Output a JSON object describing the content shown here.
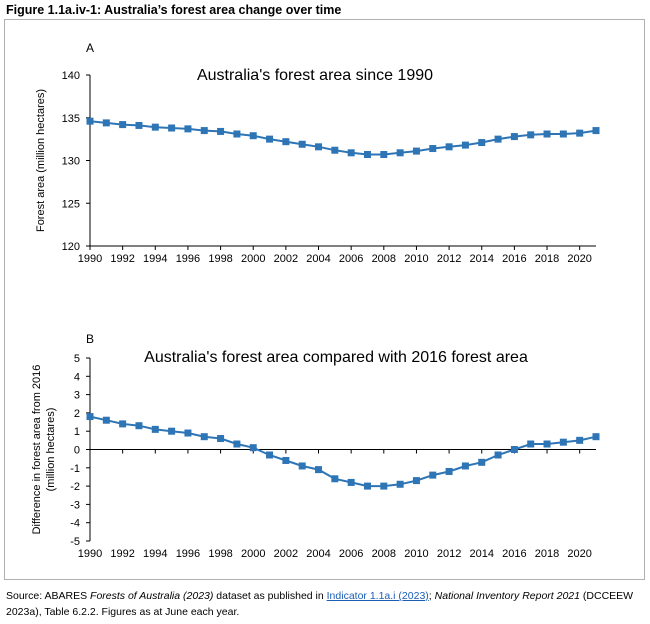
{
  "figure_title": "Figure 1.1a.iv-1: Australia’s forest area change over time",
  "source": {
    "prefix": "Source: ABARES ",
    "italic1": "Forests of Australia (2023)",
    "mid1": " dataset as published in ",
    "link": "Indicator 1.1a.i (2023)",
    "mid2": "; ",
    "italic2": "National Inventory Report 2021",
    "suffix": " (DCCEEW 2023a), Table 6.2.2. Figures as at June each year."
  },
  "colors": {
    "series": "#2e75b6",
    "axis": "#000000"
  },
  "chart_data": [
    {
      "panel": "A",
      "type": "line",
      "title": "Australia's forest area since 1990",
      "xlabel": "",
      "ylabel": "Forest area (million hectares)",
      "xlim": [
        1990,
        2021
      ],
      "ylim": [
        120,
        140
      ],
      "xticks": [
        "1990",
        "1992",
        "1994",
        "1996",
        "1998",
        "2000",
        "2002",
        "2004",
        "2006",
        "2008",
        "2010",
        "2012",
        "2014",
        "2016",
        "2018",
        "2020"
      ],
      "yticks": [
        "120",
        "125",
        "130",
        "135",
        "140"
      ],
      "x": [
        1990,
        1991,
        1992,
        1993,
        1994,
        1995,
        1996,
        1997,
        1998,
        1999,
        2000,
        2001,
        2002,
        2003,
        2004,
        2005,
        2006,
        2007,
        2008,
        2009,
        2010,
        2011,
        2012,
        2013,
        2014,
        2015,
        2016,
        2017,
        2018,
        2019,
        2020,
        2021
      ],
      "values": [
        134.6,
        134.4,
        134.2,
        134.1,
        133.9,
        133.8,
        133.7,
        133.5,
        133.4,
        133.1,
        132.9,
        132.5,
        132.2,
        131.9,
        131.6,
        131.2,
        130.9,
        130.7,
        130.7,
        130.9,
        131.1,
        131.4,
        131.6,
        131.8,
        132.1,
        132.5,
        132.8,
        133.0,
        133.1,
        133.1,
        133.2,
        133.5
      ]
    },
    {
      "panel": "B",
      "type": "line",
      "title": "Australia's forest area compared with 2016 forest area",
      "xlabel": "",
      "ylabel": "Difference in forest area from 2016 (million hectares)",
      "xlim": [
        1990,
        2021
      ],
      "ylim": [
        -5,
        5
      ],
      "xticks": [
        "1990",
        "1992",
        "1994",
        "1996",
        "1998",
        "2000",
        "2002",
        "2004",
        "2006",
        "2008",
        "2010",
        "2012",
        "2014",
        "2016",
        "2018",
        "2020"
      ],
      "yticks": [
        "-5",
        "-4",
        "-3",
        "-2",
        "-1",
        "0",
        "1",
        "2",
        "3",
        "4",
        "5"
      ],
      "x": [
        1990,
        1991,
        1992,
        1993,
        1994,
        1995,
        1996,
        1997,
        1998,
        1999,
        2000,
        2001,
        2002,
        2003,
        2004,
        2005,
        2006,
        2007,
        2008,
        2009,
        2010,
        2011,
        2012,
        2013,
        2014,
        2015,
        2016,
        2017,
        2018,
        2019,
        2020,
        2021
      ],
      "values": [
        1.8,
        1.6,
        1.4,
        1.3,
        1.1,
        1.0,
        0.9,
        0.7,
        0.6,
        0.3,
        0.1,
        -0.3,
        -0.6,
        -0.9,
        -1.1,
        -1.6,
        -1.8,
        -2.0,
        -2.0,
        -1.9,
        -1.7,
        -1.4,
        -1.2,
        -0.9,
        -0.7,
        -0.3,
        0.0,
        0.3,
        0.3,
        0.4,
        0.5,
        0.7
      ]
    }
  ]
}
